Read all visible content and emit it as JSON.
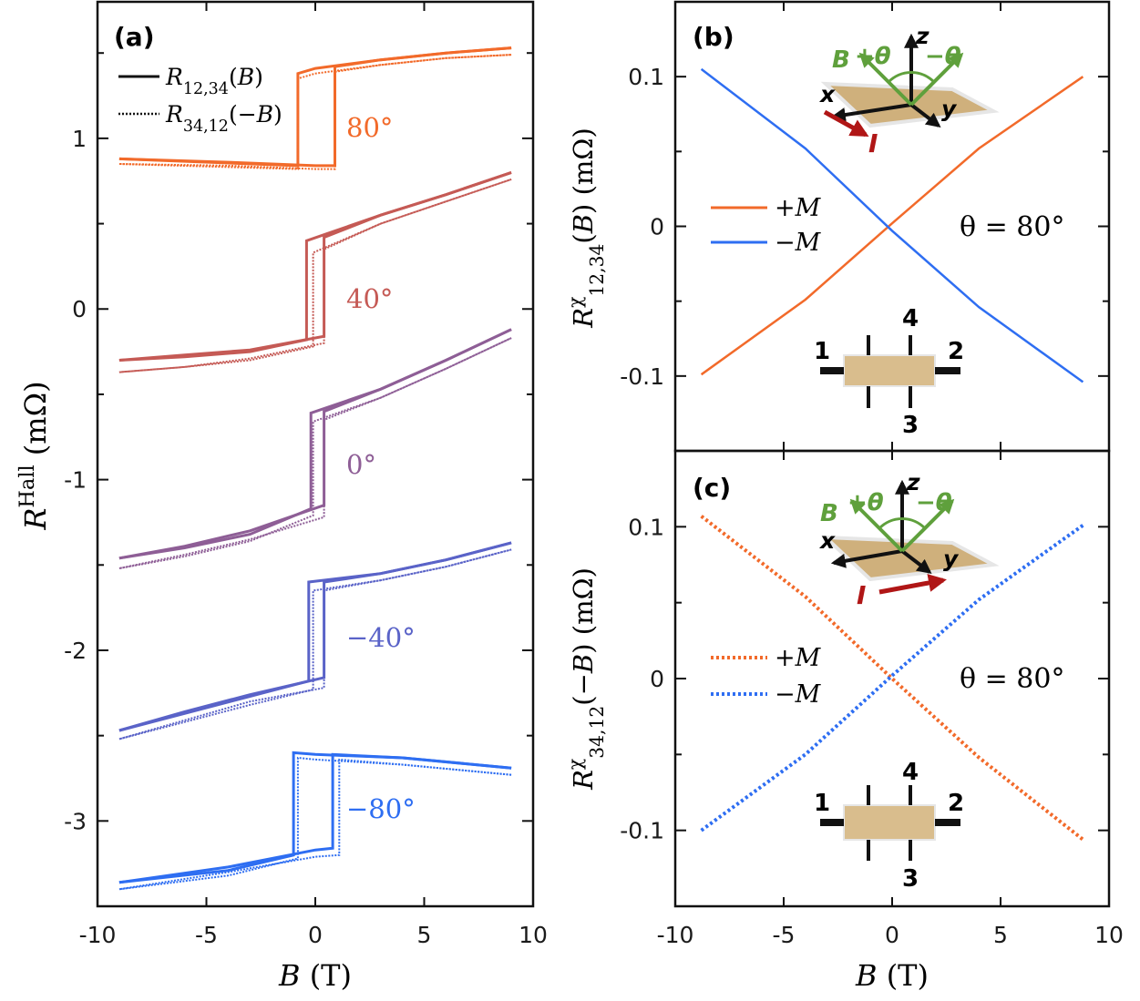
{
  "chart_data": [
    {
      "panel_label": "(a)",
      "type": "line",
      "xlabel": "B (T)",
      "ylabel": "R^Hall (mΩ)",
      "xlim": [
        -10,
        10
      ],
      "ylim": [
        -3.5,
        1.8
      ],
      "xticks": [
        "-10",
        "-5",
        "0",
        "5",
        "10"
      ],
      "yticks": [
        "1",
        "0",
        "-1",
        "-2",
        "-3"
      ],
      "legend": [
        {
          "label": "R12,34(B)",
          "style": "solid"
        },
        {
          "label": "R34,12(−B)",
          "style": "dotted"
        }
      ],
      "colors": {
        "80°": "#f26a2a",
        "40°": "#c55a55",
        "0°": "#8e5e96",
        "−40°": "#5a63c8",
        "−80°": "#2e6ef2"
      },
      "series": [
        {
          "name": "80°",
          "solid_up": [
            [
              -9,
              0.88
            ],
            [
              -0.8,
              0.84
            ],
            [
              -0.8,
              1.38
            ],
            [
              0,
              1.41
            ],
            [
              3,
              1.46
            ],
            [
              6,
              1.5
            ],
            [
              9,
              1.53
            ]
          ],
          "solid_down": [
            [
              9,
              1.53
            ],
            [
              6,
              1.5
            ],
            [
              3,
              1.46
            ],
            [
              0.9,
              1.42
            ],
            [
              0.9,
              0.84
            ],
            [
              0,
              0.84
            ],
            [
              -4,
              0.86
            ],
            [
              -9,
              0.88
            ]
          ],
          "dotted_up": [
            [
              -9,
              0.85
            ],
            [
              -0.8,
              0.82
            ],
            [
              -0.8,
              1.35
            ],
            [
              0,
              1.38
            ],
            [
              3,
              1.43
            ],
            [
              6,
              1.47
            ],
            [
              9,
              1.49
            ]
          ],
          "dotted_down": [
            [
              9,
              1.49
            ],
            [
              6,
              1.47
            ],
            [
              3,
              1.43
            ],
            [
              0.9,
              1.39
            ],
            [
              0.9,
              0.82
            ],
            [
              0,
              0.82
            ],
            [
              -4,
              0.84
            ],
            [
              -9,
              0.85
            ]
          ]
        },
        {
          "name": "40°",
          "solid_up": [
            [
              -9,
              -0.3
            ],
            [
              -6,
              -0.28
            ],
            [
              -3,
              -0.25
            ],
            [
              -0.4,
              -0.18
            ],
            [
              -0.4,
              0.4
            ],
            [
              3,
              0.55
            ],
            [
              6,
              0.67
            ],
            [
              9,
              0.8
            ]
          ],
          "solid_down": [
            [
              9,
              0.8
            ],
            [
              6,
              0.67
            ],
            [
              3,
              0.55
            ],
            [
              0.4,
              0.42
            ],
            [
              0.4,
              -0.16
            ],
            [
              -3,
              -0.24
            ],
            [
              -6,
              -0.27
            ],
            [
              -9,
              -0.3
            ]
          ],
          "dotted_up": [
            [
              -9,
              -0.37
            ],
            [
              -6,
              -0.34
            ],
            [
              -3,
              -0.3
            ],
            [
              -0.1,
              -0.22
            ],
            [
              -0.1,
              0.33
            ],
            [
              3,
              0.5
            ],
            [
              6,
              0.63
            ],
            [
              9,
              0.76
            ]
          ],
          "dotted_down": [
            [
              9,
              0.76
            ],
            [
              6,
              0.63
            ],
            [
              3,
              0.5
            ],
            [
              0.4,
              0.35
            ],
            [
              0.4,
              -0.2
            ],
            [
              -3,
              -0.29
            ],
            [
              -6,
              -0.34
            ],
            [
              -9,
              -0.37
            ]
          ]
        },
        {
          "name": "0°",
          "solid_up": [
            [
              -9,
              -1.46
            ],
            [
              -6,
              -1.4
            ],
            [
              -3,
              -1.32
            ],
            [
              -0.2,
              -1.17
            ],
            [
              -0.2,
              -0.61
            ],
            [
              3,
              -0.47
            ],
            [
              6,
              -0.3
            ],
            [
              9,
              -0.12
            ]
          ],
          "solid_down": [
            [
              9,
              -0.12
            ],
            [
              6,
              -0.3
            ],
            [
              3,
              -0.47
            ],
            [
              0.4,
              -0.6
            ],
            [
              0.4,
              -1.15
            ],
            [
              -3,
              -1.3
            ],
            [
              -6,
              -1.39
            ],
            [
              -9,
              -1.46
            ]
          ],
          "dotted_up": [
            [
              -9,
              -1.52
            ],
            [
              -6,
              -1.45
            ],
            [
              -3,
              -1.36
            ],
            [
              -0.1,
              -1.21
            ],
            [
              -0.1,
              -0.66
            ],
            [
              3,
              -0.52
            ],
            [
              6,
              -0.35
            ],
            [
              9,
              -0.17
            ]
          ],
          "dotted_down": [
            [
              9,
              -0.17
            ],
            [
              6,
              -0.35
            ],
            [
              3,
              -0.52
            ],
            [
              0.4,
              -0.65
            ],
            [
              0.4,
              -1.22
            ],
            [
              -3,
              -1.35
            ],
            [
              -6,
              -1.44
            ],
            [
              -9,
              -1.52
            ]
          ]
        },
        {
          "name": "−40°",
          "solid_up": [
            [
              -9,
              -2.47
            ],
            [
              -6,
              -2.37
            ],
            [
              -3,
              -2.27
            ],
            [
              -0.3,
              -2.18
            ],
            [
              -0.3,
              -1.6
            ],
            [
              3,
              -1.55
            ],
            [
              6,
              -1.47
            ],
            [
              9,
              -1.37
            ]
          ],
          "solid_down": [
            [
              9,
              -1.37
            ],
            [
              6,
              -1.47
            ],
            [
              3,
              -1.55
            ],
            [
              0.4,
              -1.6
            ],
            [
              0.4,
              -2.16
            ],
            [
              -3,
              -2.26
            ],
            [
              -6,
              -2.36
            ],
            [
              -9,
              -2.47
            ]
          ],
          "dotted_up": [
            [
              -9,
              -2.52
            ],
            [
              -6,
              -2.42
            ],
            [
              -3,
              -2.32
            ],
            [
              -0.1,
              -2.23
            ],
            [
              -0.1,
              -1.65
            ],
            [
              3,
              -1.59
            ],
            [
              6,
              -1.51
            ],
            [
              9,
              -1.41
            ]
          ],
          "dotted_down": [
            [
              9,
              -1.41
            ],
            [
              6,
              -1.51
            ],
            [
              3,
              -1.59
            ],
            [
              0.4,
              -1.65
            ],
            [
              0.4,
              -2.22
            ],
            [
              -3,
              -2.3
            ],
            [
              -6,
              -2.41
            ],
            [
              -9,
              -2.52
            ]
          ]
        },
        {
          "name": "−80°",
          "solid_up": [
            [
              -9,
              -3.36
            ],
            [
              -4,
              -3.29
            ],
            [
              -1,
              -3.2
            ],
            [
              -1,
              -2.6
            ],
            [
              0,
              -2.61
            ],
            [
              4,
              -2.63
            ],
            [
              9,
              -2.69
            ]
          ],
          "solid_down": [
            [
              9,
              -2.69
            ],
            [
              4,
              -2.63
            ],
            [
              0.8,
              -2.61
            ],
            [
              0.8,
              -3.16
            ],
            [
              0,
              -3.17
            ],
            [
              -4,
              -3.27
            ],
            [
              -9,
              -3.36
            ]
          ],
          "dotted_up": [
            [
              -9,
              -3.4
            ],
            [
              -4,
              -3.32
            ],
            [
              -0.8,
              -3.22
            ],
            [
              -0.8,
              -2.63
            ],
            [
              0,
              -2.64
            ],
            [
              4,
              -2.67
            ],
            [
              9,
              -2.73
            ]
          ],
          "dotted_down": [
            [
              9,
              -2.73
            ],
            [
              4,
              -2.67
            ],
            [
              1.1,
              -2.64
            ],
            [
              1.1,
              -3.2
            ],
            [
              0,
              -3.21
            ],
            [
              -4,
              -3.3
            ],
            [
              -9,
              -3.4
            ]
          ]
        }
      ]
    },
    {
      "panel_label": "(b)",
      "type": "line",
      "xlabel": "",
      "ylabel": "R^χ 12,34(B) (mΩ)",
      "xlim": [
        -10,
        10
      ],
      "ylim": [
        -0.15,
        0.15
      ],
      "xticks": [],
      "yticks": [
        "0.1",
        "0",
        "-0.1"
      ],
      "annotation": "θ = 80°",
      "legend": [
        {
          "label": "+M",
          "color": "#f26a2a",
          "style": "solid"
        },
        {
          "label": "−M",
          "color": "#2e6ef2",
          "style": "solid"
        }
      ],
      "series": [
        {
          "name": "+M",
          "color": "#f26a2a",
          "style": "solid",
          "x": [
            -8.8,
            -4,
            0,
            4,
            8.8
          ],
          "y": [
            -0.099,
            -0.049,
            0.002,
            0.052,
            0.1
          ]
        },
        {
          "name": "−M",
          "color": "#2e6ef2",
          "style": "solid",
          "x": [
            -8.8,
            -4,
            0,
            4,
            8.8
          ],
          "y": [
            0.105,
            0.052,
            -0.003,
            -0.054,
            -0.104
          ]
        }
      ],
      "inset_axes_labels": [
        "z",
        "x",
        "y",
        "B",
        "+θ",
        "−θ",
        "I"
      ],
      "inset_contacts": [
        "1",
        "2",
        "3",
        "4"
      ]
    },
    {
      "panel_label": "(c)",
      "type": "line",
      "xlabel": "B (T)",
      "ylabel": "R^χ 34,12(−B) (mΩ)",
      "xlim": [
        -10,
        10
      ],
      "ylim": [
        -0.15,
        0.15
      ],
      "xticks": [
        "-10",
        "-5",
        "0",
        "5",
        "10"
      ],
      "yticks": [
        "0.1",
        "0",
        "-0.1"
      ],
      "annotation": "θ = 80°",
      "legend": [
        {
          "label": "+M",
          "color": "#f26a2a",
          "style": "dotted"
        },
        {
          "label": "−M",
          "color": "#2e6ef2",
          "style": "dotted"
        }
      ],
      "series": [
        {
          "name": "+M",
          "color": "#f26a2a",
          "style": "dotted",
          "x": [
            -8.8,
            -4,
            0,
            4,
            8.8
          ],
          "y": [
            0.107,
            0.054,
            0.0,
            -0.052,
            -0.106
          ]
        },
        {
          "name": "−M",
          "color": "#2e6ef2",
          "style": "dotted",
          "x": [
            -8.8,
            -4,
            0,
            4,
            8.8
          ],
          "y": [
            -0.1,
            -0.05,
            0.002,
            0.052,
            0.101
          ]
        }
      ],
      "inset_axes_labels": [
        "z",
        "x",
        "y",
        "B",
        "+θ",
        "−θ",
        "I"
      ],
      "inset_contacts": [
        "1",
        "2",
        "3",
        "4"
      ]
    }
  ]
}
